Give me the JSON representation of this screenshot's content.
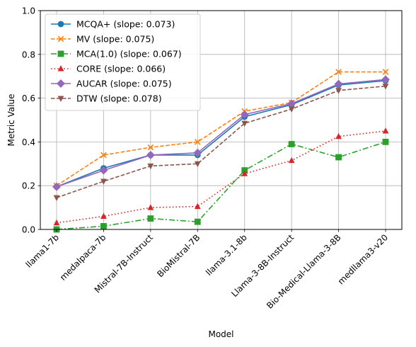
{
  "chart_data": {
    "type": "line",
    "xlabel": "Model",
    "ylabel": "Metric Value",
    "ylim": [
      0,
      1.0
    ],
    "yticks": [
      "0.0",
      "0.2",
      "0.4",
      "0.6",
      "0.8",
      "1.0"
    ],
    "grid": true,
    "legend_position": "top-left",
    "categories": [
      "llama1-7b",
      "medalpaca-7b",
      "Mistral-7B-Instruct",
      "BioMistral-7B",
      "llama-3.1-8b",
      "Llama-3-8B-Instruct",
      "Bio-Medical-Llama-3-8B",
      "medllama3-v20"
    ],
    "series": [
      {
        "name": "MCQA+ (slope: 0.073)",
        "color": "#1f77b4",
        "dash": "solid",
        "marker": "circle",
        "values": [
          0.195,
          0.28,
          0.34,
          0.34,
          0.515,
          0.57,
          0.66,
          0.68
        ]
      },
      {
        "name": "MV (slope: 0.075)",
        "color": "#ff7f0e",
        "dash": "dashed",
        "marker": "x",
        "values": [
          0.2,
          0.34,
          0.375,
          0.4,
          0.54,
          0.58,
          0.72,
          0.72
        ]
      },
      {
        "name": "MCA(1.0) (slope: 0.067)",
        "color": "#2ca02c",
        "dash": "dashdot",
        "marker": "square",
        "values": [
          0.0,
          0.015,
          0.05,
          0.035,
          0.27,
          0.39,
          0.33,
          0.4
        ]
      },
      {
        "name": "CORE (slope: 0.066)",
        "color": "#d62728",
        "dash": "dotted",
        "marker": "triangle-up",
        "values": [
          0.03,
          0.06,
          0.1,
          0.105,
          0.255,
          0.315,
          0.425,
          0.45
        ]
      },
      {
        "name": "AUCAR (slope: 0.075)",
        "color": "#9467bd",
        "dash": "solid",
        "marker": "diamond",
        "values": [
          0.195,
          0.27,
          0.34,
          0.35,
          0.525,
          0.575,
          0.665,
          0.685
        ]
      },
      {
        "name": "DTW (slope: 0.078)",
        "color": "#8c564b",
        "dash": "dashed",
        "marker": "triangle-down",
        "values": [
          0.145,
          0.22,
          0.29,
          0.3,
          0.485,
          0.55,
          0.635,
          0.655
        ]
      }
    ]
  }
}
